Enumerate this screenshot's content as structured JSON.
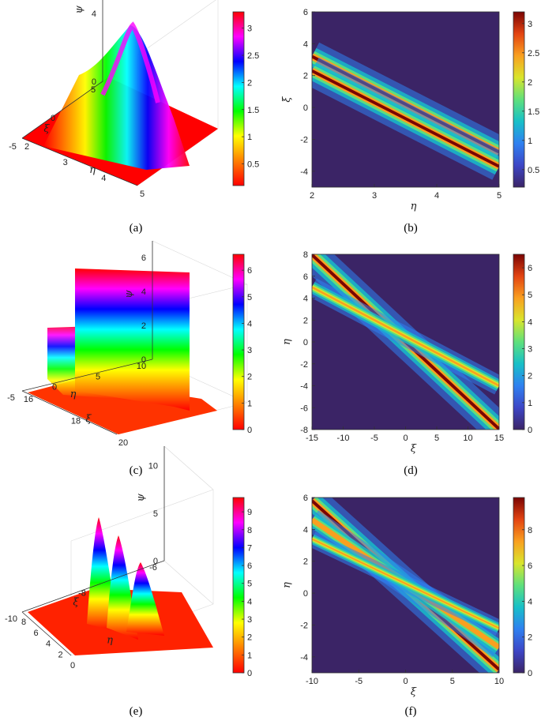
{
  "colors": {
    "jet": [
      "#3b2466",
      "#3d46c6",
      "#2f80f0",
      "#17c0c8",
      "#5fe07c",
      "#d9e52c",
      "#f9a020",
      "#e34412",
      "#7a0403"
    ],
    "rainbow": [
      "#ff0000",
      "#ff8000",
      "#ffff00",
      "#00ff00",
      "#00ffff",
      "#0000ff",
      "#ff00ff",
      "#ff0000"
    ]
  },
  "chart_data": [
    {
      "id": "a",
      "type": "surface",
      "caption": "(a)",
      "xlabel": "η",
      "ylabel": "ξ",
      "zlabel": "ψ",
      "xticks": [
        "2",
        "3",
        "4",
        "5"
      ],
      "yticks": [
        "5",
        "0",
        "-5"
      ],
      "zticks": [
        "0",
        "4"
      ],
      "xlim": [
        2,
        5
      ],
      "ylim": [
        -5,
        5
      ],
      "zlim": [
        0,
        4
      ],
      "colorbar": {
        "ticks": [
          "0.5",
          "1",
          "1.5",
          "2",
          "2.5",
          "3"
        ],
        "range": [
          0.1,
          3.3
        ]
      },
      "peak": 3.3
    },
    {
      "id": "b",
      "type": "heatmap",
      "caption": "(b)",
      "xlabel": "η",
      "ylabel": "ξ",
      "xticks": [
        "2",
        "3",
        "4",
        "5"
      ],
      "yticks": [
        "6",
        "4",
        "2",
        "0",
        "-2",
        "-4"
      ],
      "xlim": [
        2,
        5
      ],
      "ylim": [
        -5,
        6
      ],
      "colorbar": {
        "ticks": [
          "0.5",
          "1",
          "1.5",
          "2",
          "2.5",
          "3"
        ],
        "range": [
          0.2,
          3.2
        ]
      },
      "bands": [
        {
          "intercept": 7.2,
          "slope": -2.0,
          "value": 3.2
        },
        {
          "intercept": 6.3,
          "slope": -2.0,
          "value": 3.0
        }
      ]
    },
    {
      "id": "c",
      "type": "surface",
      "caption": "(c)",
      "xlabel": "ξ",
      "ylabel": "η",
      "zlabel": "ψ",
      "xticks": [
        "16",
        "18",
        "20"
      ],
      "yticks": [
        "10",
        "5",
        "0",
        "-5"
      ],
      "zticks": [
        "0",
        "2",
        "4",
        "6"
      ],
      "xlim": [
        16,
        20
      ],
      "ylim": [
        -5,
        10
      ],
      "zlim": [
        0,
        7
      ],
      "colorbar": {
        "ticks": [
          "0",
          "1",
          "2",
          "3",
          "4",
          "5",
          "6"
        ],
        "range": [
          0,
          6.6
        ]
      },
      "ridges": [
        {
          "height": 3.6
        },
        {
          "height": 6.6
        }
      ]
    },
    {
      "id": "d",
      "type": "heatmap",
      "caption": "(d)",
      "xlabel": "ξ",
      "ylabel": "η",
      "xticks": [
        "-15",
        "-10",
        "-5",
        "0",
        "5",
        "10",
        "15"
      ],
      "yticks": [
        "8",
        "6",
        "4",
        "2",
        "0",
        "-2",
        "-4",
        "-6",
        "-8"
      ],
      "xlim": [
        -15,
        15
      ],
      "ylim": [
        -8,
        8
      ],
      "colorbar": {
        "ticks": [
          "0",
          "1",
          "2",
          "3",
          "4",
          "5",
          "6"
        ],
        "range": [
          0,
          6.5
        ]
      },
      "bands": [
        {
          "intercept": 0,
          "slope": -0.53,
          "value": 6.4
        },
        {
          "intercept": 0.5,
          "slope": -0.3,
          "value": 3.2
        }
      ]
    },
    {
      "id": "e",
      "type": "surface",
      "caption": "(e)",
      "xlabel": "η",
      "ylabel": "ξ",
      "zlabel": "ψ",
      "xticks": [
        "8",
        "6",
        "4",
        "2",
        "0"
      ],
      "yticks": [
        "-6",
        "-8",
        "-10"
      ],
      "zticks": [
        "0",
        "5",
        "10"
      ],
      "xlim": [
        0,
        8
      ],
      "ylim": [
        -10,
        -6
      ],
      "zlim": [
        0,
        10
      ],
      "colorbar": {
        "ticks": [
          "0",
          "1",
          "2",
          "3",
          "4",
          "5",
          "6",
          "7",
          "8",
          "9"
        ],
        "range": [
          0,
          9.8
        ]
      },
      "peaks": [
        {
          "height": 9.6
        },
        {
          "height": 8.1
        },
        {
          "height": 5.6
        }
      ]
    },
    {
      "id": "f",
      "type": "heatmap",
      "caption": "(f)",
      "xlabel": "ξ",
      "ylabel": "η",
      "xticks": [
        "-10",
        "-5",
        "0",
        "5",
        "10"
      ],
      "yticks": [
        "6",
        "4",
        "2",
        "0",
        "-2",
        "-4"
      ],
      "xlim": [
        -10,
        10
      ],
      "ylim": [
        -5,
        6
      ],
      "colorbar": {
        "ticks": [
          "0",
          "2",
          "4",
          "6",
          "8"
        ],
        "range": [
          0,
          9.8
        ]
      },
      "bands": [
        {
          "intercept": 0.5,
          "slope": -0.53,
          "value": 9.6
        },
        {
          "intercept": 0.6,
          "slope": -0.4,
          "value": 6.5
        },
        {
          "intercept": 0.6,
          "slope": -0.28,
          "value": 3.5
        }
      ]
    }
  ]
}
